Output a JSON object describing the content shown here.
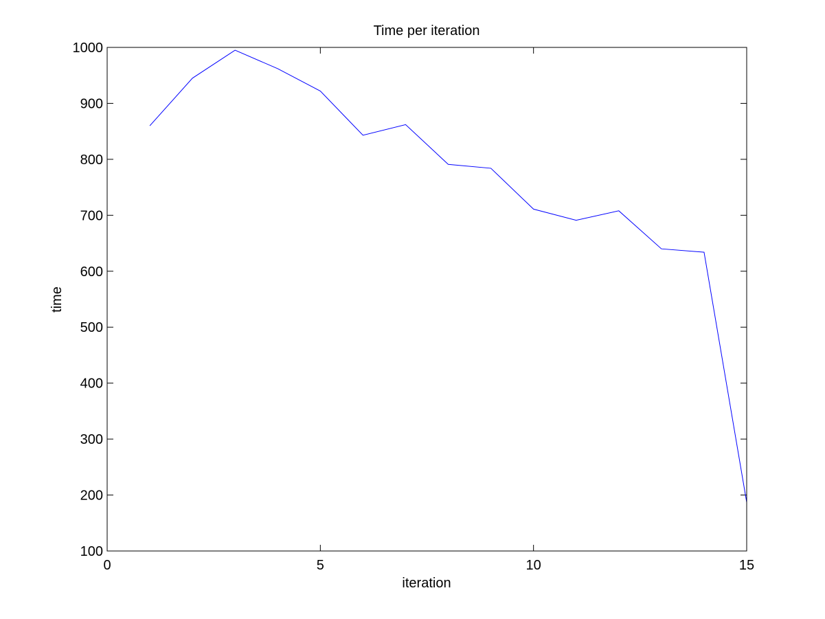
{
  "colors": {
    "background": "#ffffff",
    "axes": "#000000",
    "series": "#0000ff"
  },
  "chart_data": {
    "type": "line",
    "title": "Time per iteration",
    "xlabel": "iteration",
    "ylabel": "time",
    "xlim": [
      0,
      15
    ],
    "ylim": [
      100,
      1000
    ],
    "grid": false,
    "xticks": [
      0,
      5,
      10,
      15
    ],
    "yticks": [
      100,
      200,
      300,
      400,
      500,
      600,
      700,
      800,
      900,
      1000
    ],
    "series": [
      {
        "name": "time",
        "color": "#0000ff",
        "x": [
          1,
          2,
          3,
          4,
          5,
          6,
          7,
          8,
          9,
          10,
          11,
          12,
          13,
          14,
          15
        ],
        "y": [
          860,
          945,
          995,
          962,
          922,
          843,
          862,
          791,
          784,
          711,
          691,
          708,
          640,
          634,
          187
        ]
      }
    ]
  }
}
